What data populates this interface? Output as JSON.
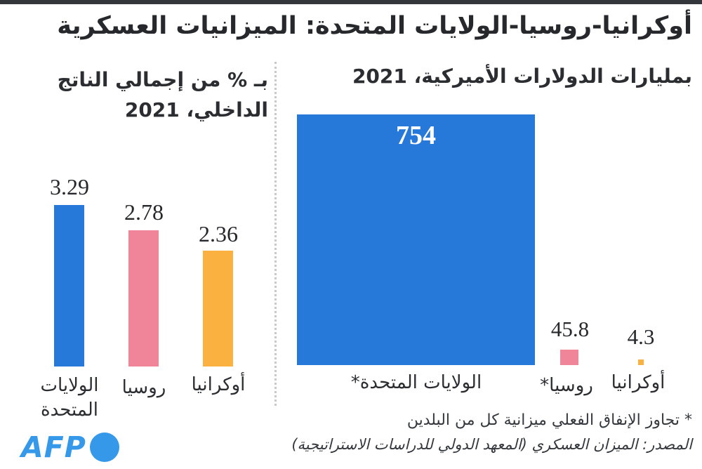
{
  "page": {
    "title": "أوكرانيا-روسيا-الولايات المتحدة: الميزانيات العسكرية",
    "footnote": "* تجاوز الإنفاق الفعلي ميزانية كل من البلدين",
    "source": "المصدر: الميزان العسكري (المعهد الدولي للدراسات الاستراتيجية)",
    "logo_text": "AFP"
  },
  "colors": {
    "united_states": "#2678d9",
    "russia": "#f08498",
    "ukraine": "#fbb13f",
    "afp_blue": "#3598e8",
    "top_bar": "#33373c",
    "text": "#26282c"
  },
  "chart_data": [
    {
      "type": "bar",
      "title": "بمليارات الدولارات الأميركية، 2021",
      "categories": [
        "الولايات المتحدة*",
        "روسيا*",
        "أوكرانيا"
      ],
      "values": [
        754,
        45.8,
        4.3
      ],
      "series_colors": [
        "#2678d9",
        "#f08498",
        "#fbb13f"
      ],
      "ylim": [
        0,
        754
      ],
      "grid": false,
      "legend": false,
      "value_labels": [
        "754",
        "45.8",
        "4.3"
      ]
    },
    {
      "type": "bar",
      "title": "بـ % من إجمالي الناتج الداخلي، 2021",
      "title_line1": "بـ % من إجمالي الناتج",
      "title_line2": "الداخلي، 2021",
      "categories": [
        "الولايات المتحدة",
        "روسيا",
        "أوكرانيا"
      ],
      "values": [
        3.29,
        2.78,
        2.36
      ],
      "series_colors": [
        "#2678d9",
        "#f08498",
        "#fbb13f"
      ],
      "ylim": [
        0,
        3.3
      ],
      "grid": false,
      "legend": false,
      "value_labels": [
        "3.29",
        "2.78",
        "2.36"
      ]
    }
  ]
}
